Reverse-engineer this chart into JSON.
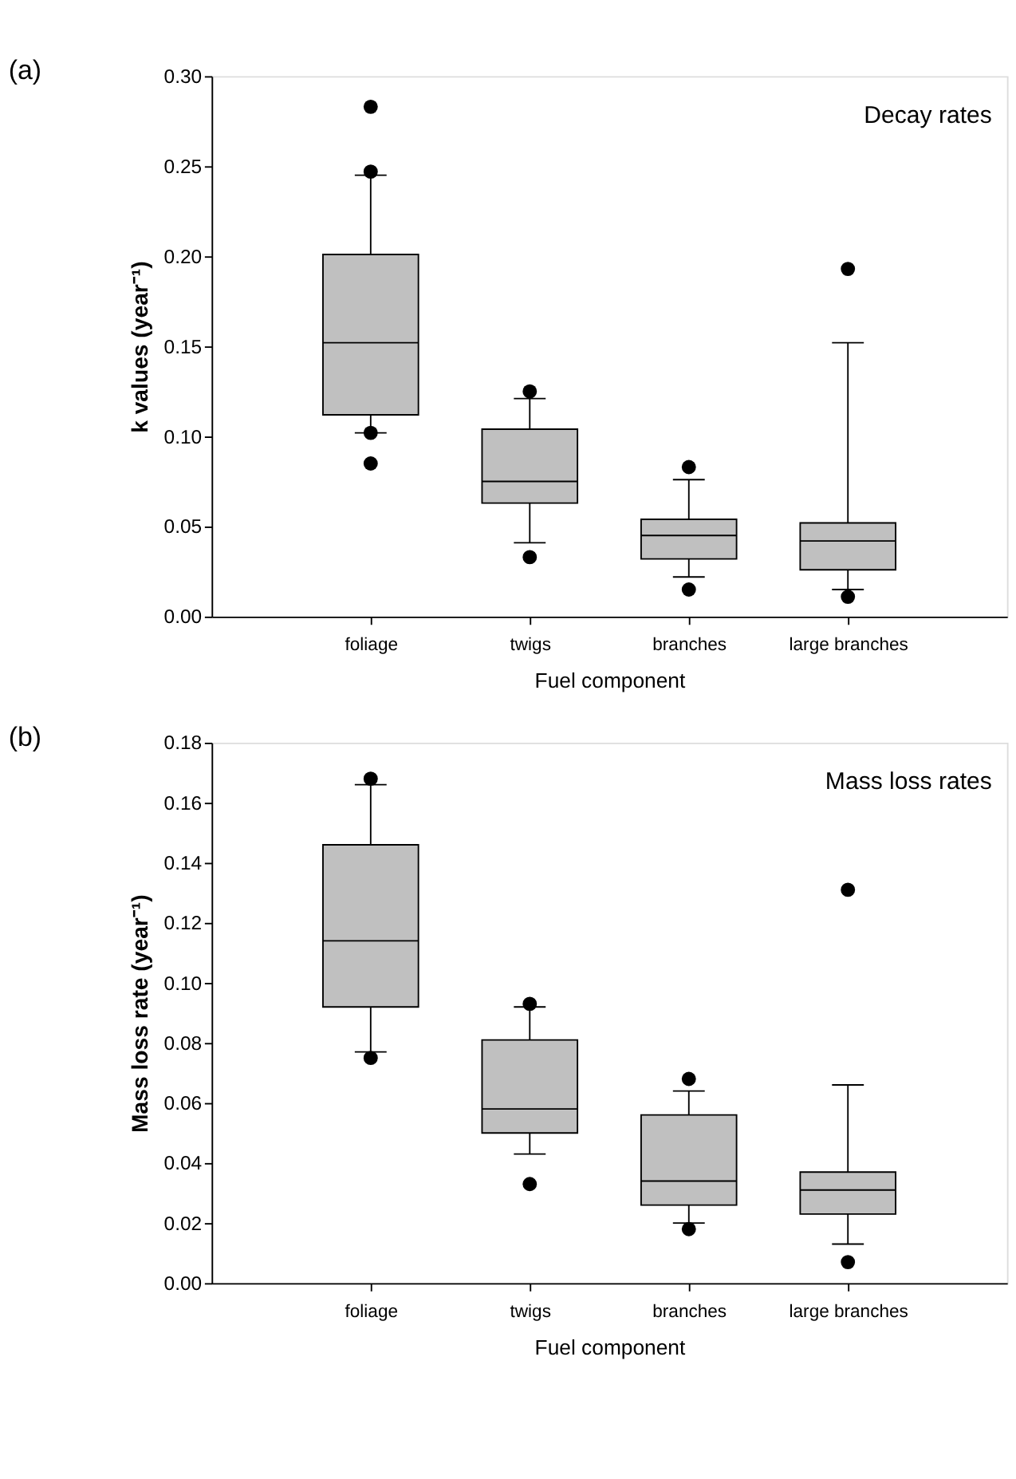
{
  "chart_data": [
    {
      "type": "box",
      "title": "(a)",
      "xlabel": "Fuel component",
      "ylabel": "k values (year⁻¹)",
      "annotations": [
        "Decay rates"
      ],
      "categories": [
        "foliage",
        "twigs",
        "branches",
        "large branches"
      ],
      "colors": [
        "#c0c0c0",
        "#c0c0c0",
        "#c0c0c0",
        "#c0c0c0"
      ],
      "boxes": [
        {
          "low": 0.102,
          "q1": 0.112,
          "median": 0.152,
          "q3": 0.201,
          "high": 0.245,
          "outliers": [
            0.283,
            0.247,
            0.102,
            0.085
          ]
        },
        {
          "low": 0.041,
          "q1": 0.063,
          "median": 0.075,
          "q3": 0.104,
          "high": 0.121,
          "outliers": [
            0.125,
            0.033
          ]
        },
        {
          "low": 0.022,
          "q1": 0.032,
          "median": 0.045,
          "q3": 0.054,
          "high": 0.076,
          "outliers": [
            0.083,
            0.015
          ]
        },
        {
          "low": 0.015,
          "q1": 0.026,
          "median": 0.042,
          "q3": 0.052,
          "high": 0.152,
          "outliers": [
            0.193,
            0.011
          ]
        }
      ],
      "ylim": [
        0,
        0.3
      ],
      "yticks": [
        {
          "value": 0,
          "label": "0.00"
        },
        {
          "value": 0.05,
          "label": "0.05"
        },
        {
          "value": 0.1,
          "label": "0.10"
        },
        {
          "value": 0.15,
          "label": "0.15"
        },
        {
          "value": 0.2,
          "label": "0.20"
        },
        {
          "value": 0.25,
          "label": "0.25"
        },
        {
          "value": 0.3,
          "label": "0.30"
        }
      ]
    },
    {
      "type": "box",
      "title": "(b)",
      "xlabel": "Fuel component",
      "ylabel": "Mass loss rate (year⁻¹)",
      "annotations": [
        "Mass loss rates"
      ],
      "categories": [
        "foliage",
        "twigs",
        "branches",
        "large branches"
      ],
      "colors": [
        "#c0c0c0",
        "#c0c0c0",
        "#c0c0c0",
        "#c0c0c0"
      ],
      "boxes": [
        {
          "low": 0.077,
          "q1": 0.092,
          "median": 0.114,
          "q3": 0.146,
          "high": 0.166,
          "outliers": [
            0.168,
            0.075
          ]
        },
        {
          "low": 0.043,
          "q1": 0.05,
          "median": 0.058,
          "q3": 0.081,
          "high": 0.092,
          "outliers": [
            0.093,
            0.033
          ]
        },
        {
          "low": 0.02,
          "q1": 0.026,
          "median": 0.034,
          "q3": 0.056,
          "high": 0.064,
          "outliers": [
            0.068,
            0.018
          ]
        },
        {
          "low": 0.013,
          "q1": 0.023,
          "median": 0.031,
          "q3": 0.037,
          "high": 0.066,
          "outliers": [
            0.131,
            0.007
          ]
        }
      ],
      "ylim": [
        0,
        0.18
      ],
      "yticks": [
        {
          "value": 0,
          "label": "0.00"
        },
        {
          "value": 0.02,
          "label": "0.02"
        },
        {
          "value": 0.04,
          "label": "0.04"
        },
        {
          "value": 0.06,
          "label": "0.06"
        },
        {
          "value": 0.08,
          "label": "0.08"
        },
        {
          "value": 0.1,
          "label": "0.10"
        },
        {
          "value": 0.12,
          "label": "0.12"
        },
        {
          "value": 0.14,
          "label": "0.14"
        },
        {
          "value": 0.16,
          "label": "0.16"
        },
        {
          "value": 0.18,
          "label": "0.18"
        }
      ]
    }
  ]
}
